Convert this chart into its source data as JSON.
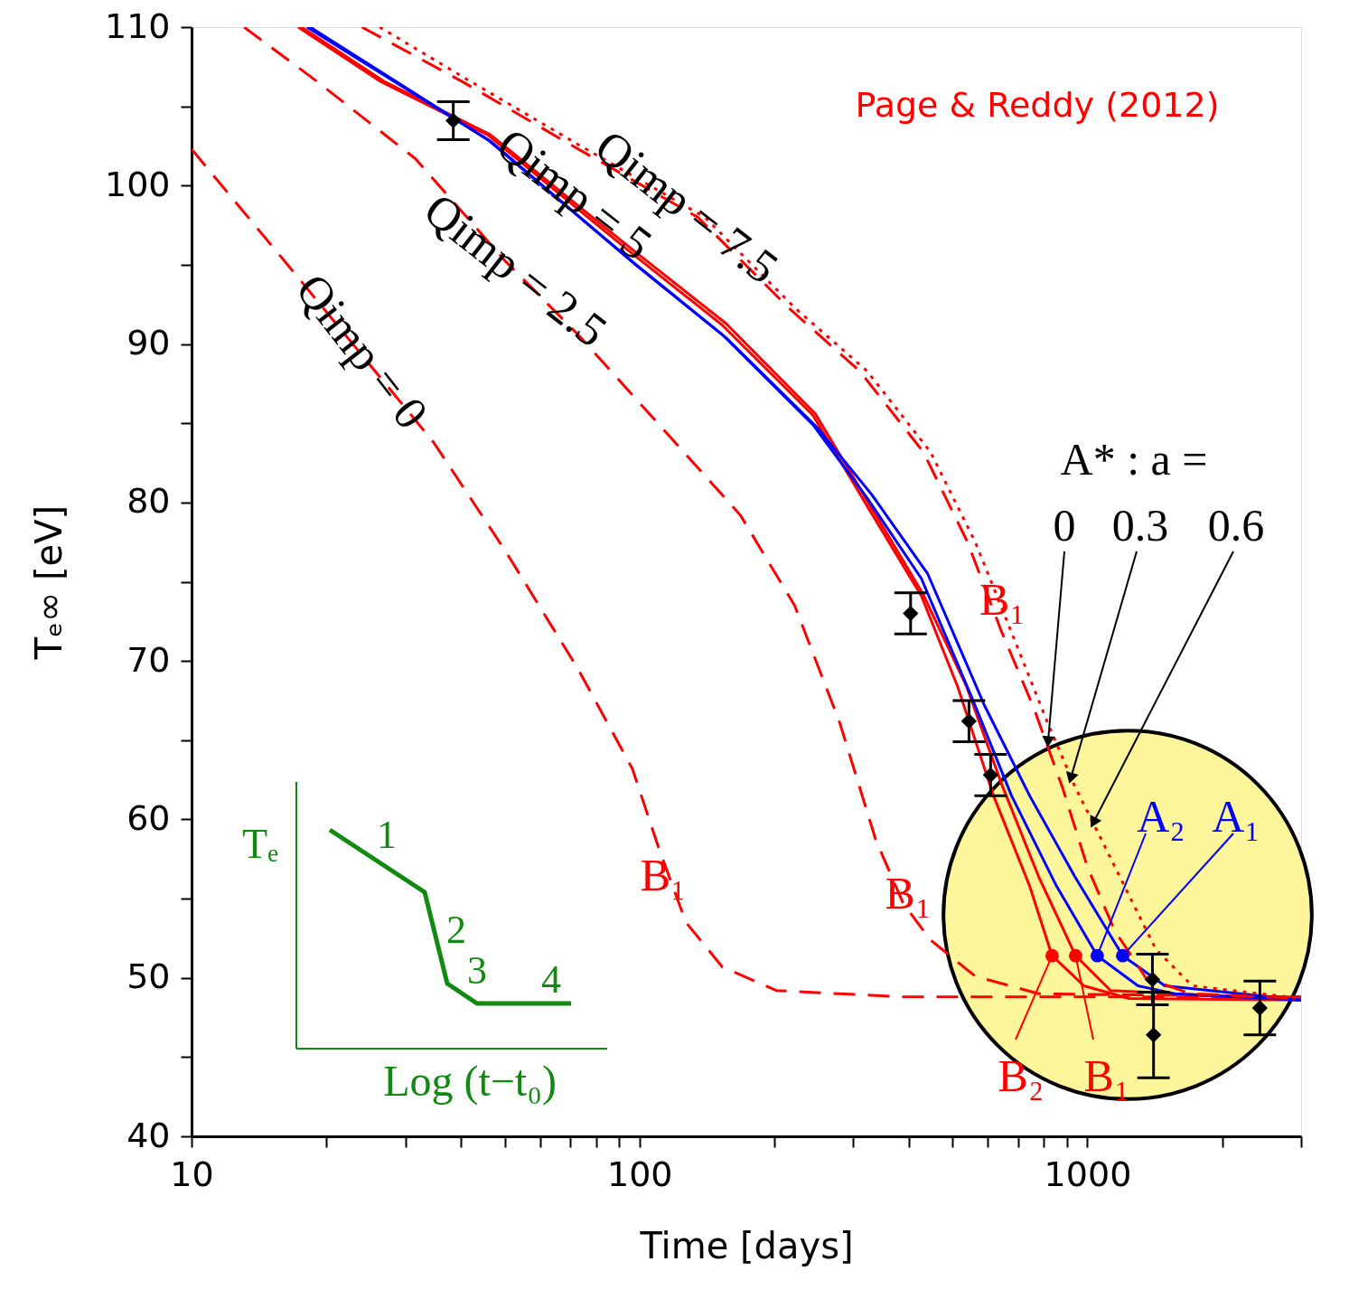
{
  "chart_data": {
    "type": "line",
    "xlabel": "Time  [days]",
    "ylabel": "Tₑ∞  [eV]",
    "log": "x",
    "xlim": [
      10,
      3000
    ],
    "ylim": [
      40,
      110
    ],
    "xticks": [
      10,
      {
        "value": 20,
        "label": null
      },
      {
        "value": 30,
        "label": null
      },
      {
        "value": 40,
        "label": null
      },
      {
        "value": 50,
        "label": null
      },
      {
        "value": 60,
        "label": null
      },
      {
        "value": 70,
        "label": null
      },
      {
        "value": 80,
        "label": null
      },
      {
        "value": 90,
        "label": null
      },
      100,
      {
        "value": 200,
        "label": null
      },
      {
        "value": 300,
        "label": null
      },
      {
        "value": 400,
        "label": null
      },
      {
        "value": 500,
        "label": null
      },
      {
        "value": 600,
        "label": null
      },
      {
        "value": 700,
        "label": null
      },
      {
        "value": 800,
        "label": null
      },
      {
        "value": 900,
        "label": null
      },
      1000,
      {
        "value": 2000,
        "label": null
      },
      {
        "value": 3000,
        "label": null
      }
    ],
    "yticks": [
      40,
      {
        "value": 45,
        "label": null
      },
      50,
      {
        "value": 55,
        "label": null
      },
      60,
      {
        "value": 65,
        "label": null
      },
      70,
      {
        "value": 75,
        "label": null
      },
      80,
      {
        "value": 85,
        "label": null
      },
      90,
      {
        "value": 95,
        "label": null
      },
      100,
      {
        "value": 105,
        "label": null
      },
      110
    ],
    "grid": false,
    "series": [
      {
        "type": "line",
        "color": "#ff0000",
        "line_style": "dashed",
        "x": [
          10,
          16.5,
          34.7,
          50.3,
          72.9,
          96.4,
          110.7,
          127,
          153,
          202,
          388,
          3000
        ],
        "values": [
          102.3,
          94.9,
          83.8,
          76.9,
          69.5,
          63.2,
          58.1,
          53.5,
          50.7,
          49.2,
          48.8,
          48.8
        ]
      },
      {
        "type": "line",
        "color": "#ff0000",
        "line_style": "dashed",
        "x": [
          13.1,
          19.0,
          31.6,
          50.3,
          72.9,
          110.7,
          168,
          222,
          280,
          337,
          388,
          446,
          562,
          778,
          3000
        ],
        "values": [
          110,
          106.6,
          101.7,
          95.2,
          90.6,
          84.9,
          79.2,
          73.5,
          66.1,
          58.7,
          54.7,
          52.4,
          50.1,
          49.0,
          48.8
        ]
      },
      {
        "type": "line",
        "color": "#ff0000",
        "line_style": "solid",
        "x": [
          17.3,
          26.3,
          45.8,
          96.4,
          153,
          244,
          322,
          426,
          513,
          617,
          743,
          834,
          982,
          1239,
          3000
        ],
        "values": [
          110,
          106.6,
          103.2,
          95.7,
          91.2,
          85.5,
          79.8,
          74.1,
          68.4,
          61.5,
          55.8,
          51.4,
          49.5,
          48.7,
          48.6
        ]
      },
      {
        "type": "line",
        "color": "#ff0000",
        "line_style": "solid",
        "x": [
          17.6,
          26.8,
          46.5,
          98,
          156,
          247,
          326,
          430,
          537,
          646,
          778,
          941,
          1127,
          3000
        ],
        "values": [
          110,
          106.6,
          103.2,
          95.8,
          91.3,
          85.6,
          79.9,
          74.2,
          68.4,
          62.1,
          56.4,
          51.4,
          49.2,
          48.6
        ]
      },
      {
        "type": "line",
        "color": "#0000ff",
        "line_style": "solid",
        "x": [
          18.1,
          45.8,
          96.4,
          153,
          244,
          322,
          426,
          550,
          677,
          853,
          1052,
          1297,
          1563,
          3000
        ],
        "values": [
          110,
          102.9,
          95.2,
          90.6,
          84.9,
          80.3,
          75.2,
          67.8,
          61.5,
          55.8,
          51.4,
          49.5,
          49.0,
          48.6
        ]
      },
      {
        "type": "line",
        "color": "#0000ff",
        "line_style": "solid",
        "x": [
          18.4,
          46.5,
          98,
          156,
          248,
          330,
          440,
          589,
          743,
          937,
          1199,
          1489,
          3000
        ],
        "values": [
          110,
          102.8,
          95.0,
          90.4,
          84.8,
          80.5,
          75.5,
          67.2,
          61.5,
          56.4,
          51.4,
          49.5,
          48.6
        ]
      },
      {
        "type": "line",
        "color": "#ff0000",
        "line_style": "dashed",
        "x": [
          24,
          40,
          70,
          135,
          215,
          310,
          430,
          540,
          640,
          760,
          880,
          1000,
          1150,
          1350,
          1700,
          3000
        ],
        "values": [
          110,
          106.6,
          102.6,
          98.0,
          92.3,
          88.3,
          83.2,
          77.5,
          72.0,
          67.0,
          62.0,
          57.0,
          53.0,
          50.0,
          49.0,
          48.7
        ]
      },
      {
        "type": "line",
        "color": "#ff0000",
        "line_style": "dotted",
        "x": [
          26.3,
          41.8,
          72.9,
          140,
          222,
          322,
          446,
          562,
          677,
          815,
          937,
          1076,
          1239,
          1422,
          1714,
          3000
        ],
        "values": [
          110,
          106.6,
          102.6,
          98.0,
          92.3,
          88.3,
          83.2,
          77.5,
          71.8,
          66.1,
          62.1,
          58.7,
          55.2,
          51.8,
          49.5,
          48.7
        ]
      },
      {
        "type": "scatter",
        "marker": "circle",
        "x": [
          834,
          941,
          1052,
          1199
        ],
        "values": [
          51.4,
          51.4,
          51.4,
          51.4
        ],
        "colors": [
          "#ff0000",
          "#ff0000",
          "#0000ff",
          "#0000ff"
        ]
      },
      {
        "type": "scatter",
        "marker": "diamond",
        "color": "#000000",
        "x": [
          38.4,
          403,
          544,
          608,
          1397,
          1405,
          2427
        ],
        "values": [
          104.1,
          73.0,
          66.2,
          62.8,
          49.9,
          46.4,
          48.1
        ],
        "errors": [
          1.2,
          1.3,
          1.3,
          1.3,
          1.6,
          2.7,
          1.7
        ]
      }
    ],
    "annotations": [
      {
        "text": "Qimp = 7.5",
        "x": 127,
        "y": 98.6
      },
      {
        "text": "Qimp = 5",
        "x": 71.3,
        "y": 99.4
      },
      {
        "text": "Qimp = 2.5",
        "x": 52.7,
        "y": 94.6
      },
      {
        "text": "Qimp = 0",
        "x": 23.9,
        "y": 89.5
      },
      {
        "text": "B₁",
        "x": 113,
        "y": 56.4
      },
      {
        "text": "B₁",
        "x": 646,
        "y": 73.8
      },
      {
        "text": "0",
        "x": 817,
        "y": 64.9
      },
      {
        "text": "0.3",
        "x": 918,
        "y": 62.6
      },
      {
        "text": "0.6",
        "x": 1031,
        "y": 59.8
      },
      {
        "text": "A₂",
        "x": 1052,
        "y": 51.4
      },
      {
        "text": "A₁",
        "x": 1199,
        "y": 51.4
      },
      {
        "text": "B₂",
        "x": 834,
        "y": 51.4
      },
      {
        "text": "B₁",
        "x": 941,
        "y": 51.4
      },
      "B₁",
      "A* : a =",
      "Page & Reddy (2012)",
      "Tₑ",
      "1",
      "2",
      "3",
      "4",
      "Log (t−t₀)"
    ]
  }
}
